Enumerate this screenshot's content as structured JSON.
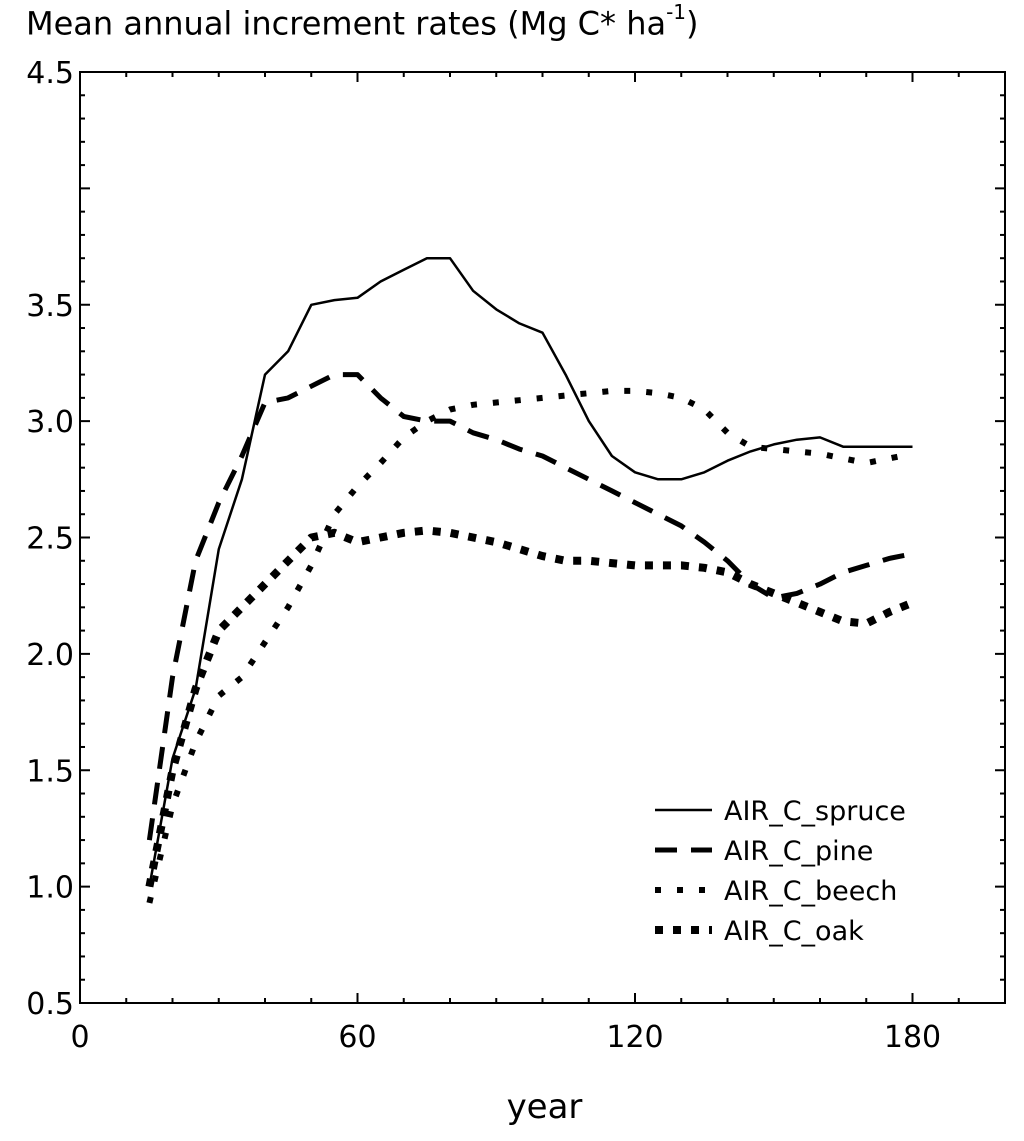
{
  "chart_data": {
    "type": "line",
    "title_main": "Mean annual increment rates (Mg C* ha",
    "title_exp": "-1",
    "title_close": ")",
    "xlabel": "year",
    "ylabel": "",
    "xlim": [
      0,
      200
    ],
    "ylim": [
      0.5,
      4.5
    ],
    "xticks": [
      0,
      60,
      120,
      180
    ],
    "yticks": [
      0.5,
      1.0,
      1.5,
      2.0,
      2.5,
      3.0,
      3.5,
      4.5
    ],
    "xtick_labels": [
      "0",
      "60",
      "120",
      "180"
    ],
    "ytick_labels": [
      "0.5",
      "1.0",
      "1.5",
      "2.0",
      "2.5",
      "3.0",
      "3.5",
      "4.5"
    ],
    "grid": false,
    "legend_position": "bottom-right",
    "series": [
      {
        "name": "AIR_C_spruce",
        "style": "solid",
        "x": [
          15,
          20,
          25,
          30,
          35,
          40,
          45,
          50,
          55,
          60,
          65,
          70,
          75,
          80,
          85,
          90,
          95,
          100,
          105,
          110,
          115,
          120,
          125,
          130,
          135,
          140,
          145,
          150,
          155,
          160,
          165,
          170,
          175,
          180
        ],
        "y": [
          1.0,
          1.55,
          1.85,
          2.45,
          2.75,
          3.2,
          3.3,
          3.5,
          3.52,
          3.53,
          3.6,
          3.65,
          3.7,
          3.7,
          3.56,
          3.48,
          3.42,
          3.38,
          3.2,
          3.0,
          2.85,
          2.78,
          2.75,
          2.75,
          2.78,
          2.83,
          2.87,
          2.9,
          2.92,
          2.93,
          2.89,
          2.89,
          2.89,
          2.89
        ]
      },
      {
        "name": "AIR_C_pine",
        "style": "dash",
        "x": [
          15,
          20,
          25,
          30,
          35,
          40,
          45,
          50,
          55,
          60,
          65,
          70,
          75,
          80,
          85,
          90,
          95,
          100,
          105,
          110,
          115,
          120,
          125,
          130,
          135,
          140,
          145,
          150,
          155,
          160,
          165,
          170,
          175,
          180
        ],
        "y": [
          1.2,
          1.9,
          2.4,
          2.65,
          2.85,
          3.08,
          3.1,
          3.15,
          3.2,
          3.2,
          3.1,
          3.02,
          3.0,
          3.0,
          2.95,
          2.92,
          2.88,
          2.85,
          2.8,
          2.75,
          2.7,
          2.65,
          2.6,
          2.55,
          2.48,
          2.4,
          2.3,
          2.24,
          2.26,
          2.3,
          2.35,
          2.38,
          2.41,
          2.43
        ]
      },
      {
        "name": "AIR_C_beech",
        "style": "dot",
        "x": [
          15,
          20,
          25,
          30,
          35,
          40,
          45,
          50,
          55,
          60,
          65,
          70,
          75,
          80,
          85,
          90,
          95,
          100,
          105,
          110,
          115,
          120,
          125,
          130,
          135,
          140,
          145,
          150,
          155,
          160,
          165,
          170,
          175,
          180
        ],
        "y": [
          0.93,
          1.35,
          1.62,
          1.82,
          1.9,
          2.05,
          2.2,
          2.38,
          2.6,
          2.72,
          2.82,
          2.93,
          3.0,
          3.05,
          3.07,
          3.08,
          3.09,
          3.1,
          3.11,
          3.12,
          3.13,
          3.13,
          3.12,
          3.1,
          3.05,
          2.95,
          2.89,
          2.88,
          2.87,
          2.86,
          2.84,
          2.82,
          2.84,
          2.86
        ]
      },
      {
        "name": "AIR_C_oak",
        "style": "dot-heavy",
        "x": [
          15,
          20,
          25,
          30,
          35,
          40,
          45,
          50,
          55,
          60,
          65,
          70,
          75,
          80,
          85,
          90,
          95,
          100,
          105,
          110,
          115,
          120,
          125,
          130,
          135,
          140,
          145,
          150,
          155,
          160,
          165,
          170,
          175,
          180
        ],
        "y": [
          1.0,
          1.5,
          1.85,
          2.1,
          2.2,
          2.3,
          2.4,
          2.5,
          2.52,
          2.48,
          2.5,
          2.52,
          2.53,
          2.52,
          2.5,
          2.48,
          2.45,
          2.42,
          2.4,
          2.4,
          2.39,
          2.38,
          2.38,
          2.38,
          2.37,
          2.35,
          2.3,
          2.26,
          2.22,
          2.18,
          2.14,
          2.13,
          2.18,
          2.22
        ]
      }
    ]
  }
}
